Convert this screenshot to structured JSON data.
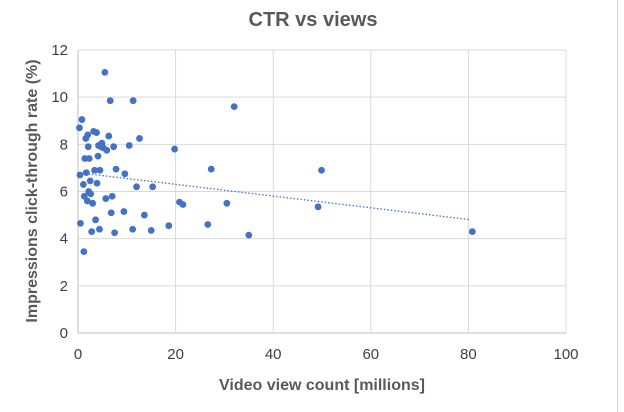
{
  "chart_data": {
    "type": "scatter",
    "title": "CTR vs views",
    "xlabel": "Video view count [millions]",
    "ylabel": "Impressions click-through rate (%)",
    "xlim": [
      0,
      100
    ],
    "ylim": [
      0,
      12
    ],
    "x_ticks": [
      "0",
      "20",
      "40",
      "60",
      "80",
      "100"
    ],
    "y_ticks": [
      "0",
      "2",
      "4",
      "6",
      "8",
      "10",
      "12"
    ],
    "grid": true,
    "legend": "none",
    "colors": {
      "points": "#4472c4",
      "trendline": "#4472c4",
      "grid": "#d9d9d9",
      "axis": "#bfbfbf"
    },
    "trendline": {
      "style": "dotted",
      "x": [
        0,
        80.5
      ],
      "y": [
        6.8,
        4.8
      ]
    },
    "points": [
      {
        "x": 0.3,
        "y": 8.7
      },
      {
        "x": 0.8,
        "y": 9.05
      },
      {
        "x": 0.4,
        "y": 6.7
      },
      {
        "x": 0.5,
        "y": 4.65
      },
      {
        "x": 1.2,
        "y": 3.45
      },
      {
        "x": 1.1,
        "y": 6.3
      },
      {
        "x": 1.3,
        "y": 5.8
      },
      {
        "x": 1.4,
        "y": 7.4
      },
      {
        "x": 1.6,
        "y": 8.25
      },
      {
        "x": 1.7,
        "y": 6.8
      },
      {
        "x": 1.9,
        "y": 5.6
      },
      {
        "x": 2.0,
        "y": 8.4
      },
      {
        "x": 2.1,
        "y": 7.9
      },
      {
        "x": 2.2,
        "y": 6.0
      },
      {
        "x": 2.3,
        "y": 7.4
      },
      {
        "x": 2.5,
        "y": 6.45
      },
      {
        "x": 2.6,
        "y": 5.9
      },
      {
        "x": 2.8,
        "y": 4.3
      },
      {
        "x": 3.0,
        "y": 5.5
      },
      {
        "x": 3.2,
        "y": 8.55
      },
      {
        "x": 3.4,
        "y": 6.9
      },
      {
        "x": 3.6,
        "y": 4.8
      },
      {
        "x": 3.8,
        "y": 8.5
      },
      {
        "x": 3.9,
        "y": 6.35
      },
      {
        "x": 4.1,
        "y": 7.5
      },
      {
        "x": 4.2,
        "y": 7.95
      },
      {
        "x": 4.4,
        "y": 4.4
      },
      {
        "x": 4.5,
        "y": 6.9
      },
      {
        "x": 4.7,
        "y": 7.9
      },
      {
        "x": 4.9,
        "y": 8.05
      },
      {
        "x": 5.2,
        "y": 7.85
      },
      {
        "x": 5.5,
        "y": 11.05
      },
      {
        "x": 5.7,
        "y": 5.7
      },
      {
        "x": 5.9,
        "y": 7.75
      },
      {
        "x": 6.3,
        "y": 8.35
      },
      {
        "x": 6.6,
        "y": 9.85
      },
      {
        "x": 6.8,
        "y": 5.1
      },
      {
        "x": 7.0,
        "y": 5.8
      },
      {
        "x": 7.3,
        "y": 7.9
      },
      {
        "x": 7.5,
        "y": 4.25
      },
      {
        "x": 7.8,
        "y": 6.95
      },
      {
        "x": 9.4,
        "y": 5.15
      },
      {
        "x": 9.6,
        "y": 6.75
      },
      {
        "x": 10.5,
        "y": 7.95
      },
      {
        "x": 11.2,
        "y": 4.4
      },
      {
        "x": 11.3,
        "y": 9.85
      },
      {
        "x": 12.0,
        "y": 6.2
      },
      {
        "x": 12.6,
        "y": 8.25
      },
      {
        "x": 13.6,
        "y": 5.0
      },
      {
        "x": 15.0,
        "y": 4.35
      },
      {
        "x": 15.3,
        "y": 6.2
      },
      {
        "x": 18.6,
        "y": 4.55
      },
      {
        "x": 19.8,
        "y": 7.8
      },
      {
        "x": 20.8,
        "y": 5.55
      },
      {
        "x": 21.5,
        "y": 5.45
      },
      {
        "x": 26.6,
        "y": 4.6
      },
      {
        "x": 27.3,
        "y": 6.95
      },
      {
        "x": 30.5,
        "y": 5.5
      },
      {
        "x": 32.0,
        "y": 9.6
      },
      {
        "x": 35.0,
        "y": 4.15
      },
      {
        "x": 49.2,
        "y": 5.35
      },
      {
        "x": 49.9,
        "y": 6.9
      },
      {
        "x": 80.8,
        "y": 4.3
      }
    ]
  }
}
